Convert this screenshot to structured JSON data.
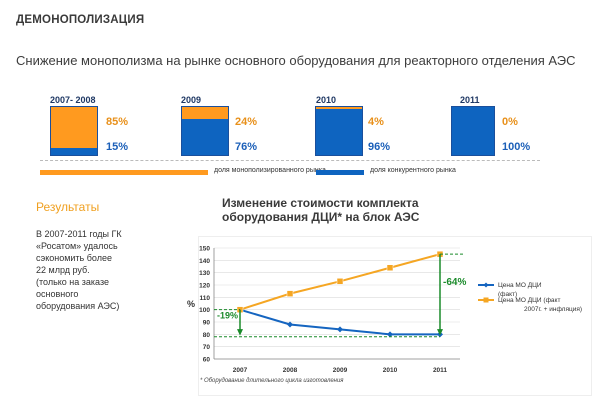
{
  "header": {
    "title": "ДЕМОНОПОЛИЗАЦИЯ",
    "subtitle": "Снижение монополизма на рынке основного оборудования для реакторного отделения АЭС"
  },
  "bars": [
    {
      "year": "2007- 2008",
      "mono": 85,
      "comp": 15,
      "mono_label": "85%",
      "comp_label": "15%"
    },
    {
      "year": "2009",
      "mono": 24,
      "comp": 76,
      "mono_label": "24%",
      "comp_label": "76%"
    },
    {
      "year": "2010",
      "mono": 4,
      "comp": 96,
      "mono_label": "4%",
      "comp_label": "96%"
    },
    {
      "year": "2011",
      "mono": 0,
      "comp": 100,
      "mono_label": "0%",
      "comp_label": "100%"
    }
  ],
  "bar_legend": {
    "mono": "доля монополизированного рынка",
    "comp": "доля конкурентного рынка"
  },
  "colors": {
    "orange": "#ff9a1f",
    "blue": "#0e64c0",
    "green": "#1a8a2a"
  },
  "results": {
    "heading": "Результаты",
    "text": "В 2007-2011 годы ГК\n«Росатом» удалось\nсэкономить более\n22 млрд руб.\n(только на заказе\nосновного\nоборудования АЭС)"
  },
  "chart_data": {
    "type": "line",
    "title": "Изменение стоимости комплекта\nоборудования ДЦИ* на блок АЭС",
    "ylabel": "%",
    "categories": [
      "2007",
      "2008",
      "2009",
      "2010",
      "2011"
    ],
    "ylim": [
      60,
      150
    ],
    "yticks": [
      60,
      70,
      80,
      90,
      100,
      110,
      120,
      130,
      140,
      150
    ],
    "series": [
      {
        "name": "Цена МО ДЦИ\n(факт)",
        "color": "#1565c0",
        "values": [
          100,
          88,
          84,
          80,
          80
        ]
      },
      {
        "name": "Цена МО ДЦИ (факт\n2007г. + инфляция)",
        "color": "#f5a623",
        "values": [
          100,
          113,
          123,
          134,
          145
        ]
      }
    ],
    "annotations": {
      "left": "-19%",
      "right": "-64%"
    },
    "footnote": "* Оборудование длительного цикла изготовления"
  }
}
